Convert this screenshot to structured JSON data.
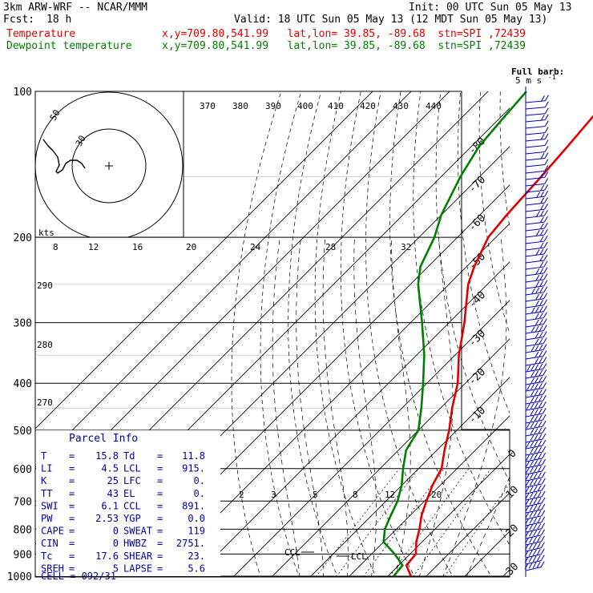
{
  "header": {
    "model": "3km ARW-WRF -- NCAR/MMM",
    "init": "Init: 00 UTC Sun 05 May 13",
    "fcst_label": "Fcst:",
    "fcst_value": "18 h",
    "valid": "Valid: 18 UTC Sun 05 May 13 (12 MDT Sun 05 May 13)",
    "temp_label": "Temperature",
    "temp_info": "x,y=709.80,541.99   lat,lon= 39.85, -89.68  stn=SPI ,72439",
    "dew_label": "Dewpoint temperature",
    "dew_info": "x,y=709.80,541.99   lat,lon= 39.85, -89.68  stn=SPI ,72439"
  },
  "colors": {
    "temperature": "#e00000",
    "dewpoint": "#008000",
    "grid": "#000000",
    "parcel": "#0000a0",
    "barbs": "#0000c0"
  },
  "chart_data": {
    "type": "skew-t",
    "pressure_levels": [
      "100",
      "200",
      "300",
      "400",
      "500",
      "600",
      "700",
      "800",
      "900",
      "1000"
    ],
    "pressure_values": [
      100,
      200,
      300,
      400,
      500,
      600,
      700,
      800,
      900,
      1000
    ],
    "isotherm_labels": [
      "-80",
      "-70",
      "-60",
      "-50",
      "-40",
      "-30",
      "-20",
      "-10",
      "0",
      "10",
      "20",
      "30",
      "40"
    ],
    "isotherm_values": [
      -80,
      -70,
      -60,
      -50,
      -40,
      -30,
      -20,
      -10,
      0,
      10,
      20,
      30,
      40
    ],
    "theta_labels": [
      "370",
      "380",
      "390",
      "400",
      "410",
      "420",
      "430",
      "440"
    ],
    "dry_adiabat_labels": [
      "290",
      "280",
      "270"
    ],
    "mixing_ratio_labels": [
      "2",
      "3",
      "5",
      "8",
      "12",
      "20"
    ],
    "hodograph": {
      "axis_labels": [
        "8",
        "12",
        "16",
        "20",
        "24",
        "28",
        "32"
      ],
      "units": "kts",
      "ring_labels": [
        "50",
        "30"
      ]
    },
    "temperature": {
      "name": "Temperature",
      "points": [
        [
          1000,
          16.0
        ],
        [
          950,
          12.0
        ],
        [
          900,
          11.5
        ],
        [
          850,
          8.5
        ],
        [
          800,
          6.0
        ],
        [
          750,
          3.0
        ],
        [
          700,
          0.5
        ],
        [
          650,
          -2.0
        ],
        [
          600,
          -4.0
        ],
        [
          550,
          -8.0
        ],
        [
          500,
          -12.0
        ],
        [
          450,
          -17.0
        ],
        [
          400,
          -22.0
        ],
        [
          350,
          -29.0
        ],
        [
          300,
          -36.0
        ],
        [
          250,
          -45.0
        ],
        [
          230,
          -48.0
        ],
        [
          200,
          -52.0
        ],
        [
          180,
          -53.0
        ],
        [
          150,
          -54.0
        ],
        [
          130,
          -55.0
        ],
        [
          115,
          -56.0
        ],
        [
          100,
          -57.0
        ]
      ]
    },
    "dewpoint": {
      "name": "Dewpoint temperature",
      "points": [
        [
          1000,
          11.5
        ],
        [
          950,
          11.0
        ],
        [
          900,
          6.0
        ],
        [
          850,
          0.0
        ],
        [
          800,
          -3.0
        ],
        [
          750,
          -5.0
        ],
        [
          700,
          -7.0
        ],
        [
          650,
          -10.0
        ],
        [
          600,
          -14.0
        ],
        [
          550,
          -18.0
        ],
        [
          500,
          -20.0
        ],
        [
          450,
          -25.0
        ],
        [
          400,
          -31.0
        ],
        [
          350,
          -38.0
        ],
        [
          300,
          -47.0
        ],
        [
          250,
          -58.0
        ],
        [
          230,
          -62.0
        ],
        [
          200,
          -66.0
        ],
        [
          180,
          -70.0
        ],
        [
          150,
          -75.0
        ],
        [
          130,
          -78.0
        ],
        [
          115,
          -79.0
        ],
        [
          100,
          -80.0
        ]
      ]
    },
    "annotations": {
      "lcl": "LCL",
      "ccl": "CCL"
    },
    "barb_title": "Full barb:",
    "barb_unit": "5 m s",
    "barb_unit_exp": "-1"
  },
  "parcel_info": {
    "title": "Parcel Info",
    "rows": [
      {
        "k1": "T",
        "v1": "15.8",
        "k2": "Td",
        "v2": "11.8"
      },
      {
        "k1": "LI",
        "v1": "4.5",
        "k2": "LCL",
        "v2": "915."
      },
      {
        "k1": "K",
        "v1": "25",
        "k2": "LFC",
        "v2": "0."
      },
      {
        "k1": "TT",
        "v1": "43",
        "k2": "EL",
        "v2": "0."
      },
      {
        "k1": "SWI",
        "v1": "6.1",
        "k2": "CCL",
        "v2": "891."
      },
      {
        "k1": "PW",
        "v1": "2.53",
        "k2": "YGP",
        "v2": "0.0"
      },
      {
        "k1": "CAPE",
        "v1": "0",
        "k2": "SWEAT",
        "v2": "119"
      },
      {
        "k1": "CIN",
        "v1": "0",
        "k2": "HWBZ",
        "v2": "2751."
      },
      {
        "k1": "Tc",
        "v1": "17.6",
        "k2": "SHEAR",
        "v2": "23."
      },
      {
        "k1": "SREH",
        "v1": "5",
        "k2": "LAPSE",
        "v2": "5.6"
      }
    ],
    "cell": "CELL = 092/31"
  }
}
